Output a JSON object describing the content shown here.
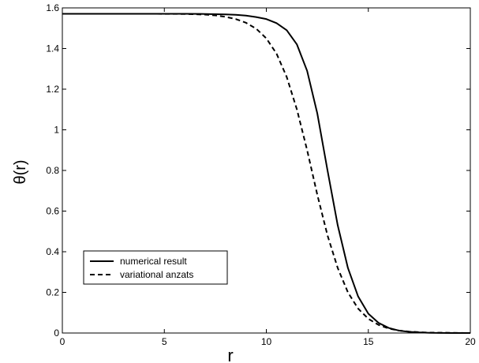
{
  "chart_data": {
    "type": "line",
    "title": "",
    "xlabel": "r",
    "ylabel": "θ(r)",
    "xlim": [
      0,
      20
    ],
    "ylim": [
      0,
      1.6
    ],
    "grid": false,
    "x_ticks": [
      0,
      5,
      10,
      15,
      20
    ],
    "x_tick_labels": [
      "0",
      "5",
      "10",
      "15",
      "20"
    ],
    "y_ticks": [
      0,
      0.2,
      0.4,
      0.6,
      0.8,
      1,
      1.2,
      1.4,
      1.6
    ],
    "y_tick_labels": [
      "0",
      "0.2",
      "0.4",
      "0.6",
      "0.8",
      "1",
      "1.2",
      "1.4",
      "1.6"
    ],
    "legend_position": "lower-left",
    "series": [
      {
        "name": "numerical result",
        "style": "solid",
        "color": "#000000",
        "x": [
          0,
          2,
          4,
          6,
          7,
          8,
          8.5,
          9,
          9.5,
          10,
          10.5,
          11,
          11.5,
          12,
          12.5,
          13,
          13.5,
          14,
          14.5,
          15,
          15.5,
          16,
          16.5,
          17,
          17.5,
          18,
          19,
          20
        ],
        "y": [
          1.571,
          1.571,
          1.571,
          1.571,
          1.57,
          1.568,
          1.566,
          1.562,
          1.555,
          1.545,
          1.525,
          1.49,
          1.42,
          1.29,
          1.08,
          0.8,
          0.53,
          0.32,
          0.18,
          0.095,
          0.05,
          0.025,
          0.012,
          0.006,
          0.003,
          0.001,
          0.0,
          0.0
        ]
      },
      {
        "name": "variational anzats",
        "style": "dashed",
        "color": "#000000",
        "x": [
          0,
          2,
          4,
          6,
          7,
          7.5,
          8,
          8.5,
          9,
          9.5,
          10,
          10.5,
          11,
          11.5,
          12,
          12.5,
          13,
          13.5,
          14,
          14.5,
          15,
          15.5,
          16,
          16.5,
          17,
          17.5,
          18,
          19,
          20
        ],
        "y": [
          1.571,
          1.571,
          1.571,
          1.57,
          1.567,
          1.563,
          1.556,
          1.545,
          1.527,
          1.498,
          1.45,
          1.375,
          1.26,
          1.1,
          0.9,
          0.68,
          0.48,
          0.32,
          0.2,
          0.12,
          0.07,
          0.04,
          0.022,
          0.012,
          0.007,
          0.004,
          0.002,
          0.001,
          0.0
        ]
      }
    ]
  }
}
